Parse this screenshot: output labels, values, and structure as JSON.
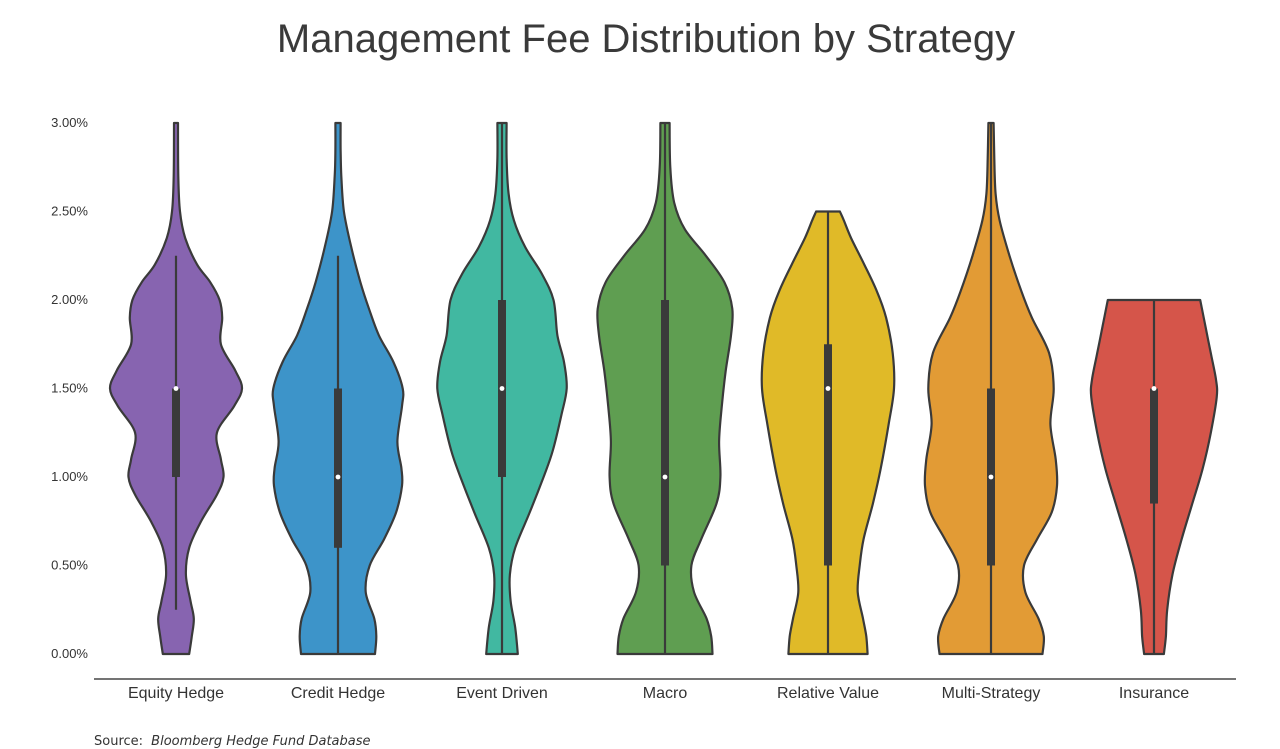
{
  "chart_data": {
    "type": "violin",
    "title": "Management Fee Distribution by Strategy",
    "xlabel": "",
    "ylabel": "",
    "ylim": [
      0,
      3
    ],
    "y_ticks": [
      0,
      0.5,
      1,
      1.5,
      2,
      2.5,
      3
    ],
    "y_tick_labels": [
      "0.00%",
      "0.50%",
      "1.00%",
      "1.50%",
      "2.00%",
      "2.50%",
      "3.00%"
    ],
    "grid": false,
    "legend": "none",
    "categories": [
      "Equity Hedge",
      "Credit Hedge",
      "Event Driven",
      "Macro",
      "Relative Value",
      "Multi-Strategy",
      "Insurance"
    ],
    "series": [
      {
        "category": "Equity Hedge",
        "color": "#8764b0",
        "min": 0.0,
        "max": 3.0,
        "whisker_low": 0.25,
        "q1": 1.0,
        "median": 1.5,
        "q3": 1.5,
        "whisker_high": 2.25,
        "density": [
          [
            0.0,
            0.2
          ],
          [
            0.1,
            0.24
          ],
          [
            0.2,
            0.27
          ],
          [
            0.3,
            0.22
          ],
          [
            0.45,
            0.15
          ],
          [
            0.6,
            0.2
          ],
          [
            0.75,
            0.38
          ],
          [
            0.9,
            0.62
          ],
          [
            1.0,
            0.72
          ],
          [
            1.1,
            0.68
          ],
          [
            1.25,
            0.62
          ],
          [
            1.4,
            0.88
          ],
          [
            1.5,
            1.0
          ],
          [
            1.6,
            0.9
          ],
          [
            1.75,
            0.68
          ],
          [
            1.9,
            0.7
          ],
          [
            2.0,
            0.66
          ],
          [
            2.1,
            0.52
          ],
          [
            2.2,
            0.32
          ],
          [
            2.35,
            0.14
          ],
          [
            2.5,
            0.06
          ],
          [
            2.7,
            0.035
          ],
          [
            3.0,
            0.03
          ]
        ]
      },
      {
        "category": "Credit Hedge",
        "color": "#3d94c9",
        "min": 0.0,
        "max": 3.0,
        "whisker_low": 0.0,
        "q1": 0.6,
        "median": 1.0,
        "q3": 1.5,
        "whisker_high": 2.25,
        "density": [
          [
            0.0,
            0.56
          ],
          [
            0.1,
            0.58
          ],
          [
            0.2,
            0.55
          ],
          [
            0.35,
            0.42
          ],
          [
            0.5,
            0.48
          ],
          [
            0.65,
            0.7
          ],
          [
            0.8,
            0.88
          ],
          [
            0.95,
            0.97
          ],
          [
            1.05,
            0.96
          ],
          [
            1.2,
            0.9
          ],
          [
            1.4,
            0.97
          ],
          [
            1.5,
            0.98
          ],
          [
            1.65,
            0.84
          ],
          [
            1.8,
            0.62
          ],
          [
            1.95,
            0.47
          ],
          [
            2.1,
            0.34
          ],
          [
            2.3,
            0.2
          ],
          [
            2.5,
            0.09
          ],
          [
            2.7,
            0.05
          ],
          [
            2.85,
            0.04
          ],
          [
            3.0,
            0.04
          ]
        ]
      },
      {
        "category": "Event Driven",
        "color": "#41b8a1",
        "min": 0.0,
        "max": 3.0,
        "whisker_low": 0.0,
        "q1": 1.0,
        "median": 1.5,
        "q3": 2.0,
        "whisker_high": 3.0,
        "density": [
          [
            0.0,
            0.24
          ],
          [
            0.15,
            0.2
          ],
          [
            0.3,
            0.13
          ],
          [
            0.45,
            0.12
          ],
          [
            0.6,
            0.2
          ],
          [
            0.8,
            0.42
          ],
          [
            1.0,
            0.63
          ],
          [
            1.15,
            0.77
          ],
          [
            1.35,
            0.9
          ],
          [
            1.5,
            0.98
          ],
          [
            1.65,
            0.94
          ],
          [
            1.8,
            0.84
          ],
          [
            2.0,
            0.78
          ],
          [
            2.15,
            0.6
          ],
          [
            2.3,
            0.35
          ],
          [
            2.45,
            0.18
          ],
          [
            2.6,
            0.1
          ],
          [
            2.8,
            0.07
          ],
          [
            3.0,
            0.07
          ]
        ]
      },
      {
        "category": "Macro",
        "color": "#5f9e51",
        "min": 0.0,
        "max": 3.0,
        "whisker_low": 0.0,
        "q1": 0.5,
        "median": 1.0,
        "q3": 2.0,
        "whisker_high": 3.0,
        "density": [
          [
            0.0,
            0.72
          ],
          [
            0.1,
            0.7
          ],
          [
            0.2,
            0.63
          ],
          [
            0.35,
            0.44
          ],
          [
            0.5,
            0.4
          ],
          [
            0.65,
            0.55
          ],
          [
            0.85,
            0.78
          ],
          [
            1.0,
            0.84
          ],
          [
            1.2,
            0.82
          ],
          [
            1.4,
            0.86
          ],
          [
            1.6,
            0.92
          ],
          [
            1.8,
            1.0
          ],
          [
            1.95,
            1.02
          ],
          [
            2.1,
            0.9
          ],
          [
            2.25,
            0.62
          ],
          [
            2.4,
            0.3
          ],
          [
            2.55,
            0.14
          ],
          [
            2.75,
            0.08
          ],
          [
            3.0,
            0.07
          ]
        ]
      },
      {
        "category": "Relative Value",
        "color": "#e0ba28",
        "min": 0.0,
        "max": 2.5,
        "whisker_low": 0.0,
        "q1": 0.5,
        "median": 1.5,
        "q3": 1.75,
        "whisker_high": 2.5,
        "density": [
          [
            0.0,
            0.6
          ],
          [
            0.1,
            0.58
          ],
          [
            0.2,
            0.53
          ],
          [
            0.35,
            0.45
          ],
          [
            0.5,
            0.48
          ],
          [
            0.65,
            0.54
          ],
          [
            0.85,
            0.68
          ],
          [
            1.05,
            0.8
          ],
          [
            1.3,
            0.92
          ],
          [
            1.5,
            1.0
          ],
          [
            1.7,
            0.98
          ],
          [
            1.9,
            0.88
          ],
          [
            2.05,
            0.74
          ],
          [
            2.2,
            0.55
          ],
          [
            2.35,
            0.35
          ],
          [
            2.45,
            0.24
          ],
          [
            2.5,
            0.18
          ]
        ]
      },
      {
        "category": "Multi-Strategy",
        "color": "#e29b35",
        "min": 0.0,
        "max": 3.0,
        "whisker_low": 0.0,
        "q1": 0.5,
        "median": 1.0,
        "q3": 1.5,
        "whisker_high": 3.0,
        "density": [
          [
            0.0,
            0.78
          ],
          [
            0.1,
            0.8
          ],
          [
            0.2,
            0.72
          ],
          [
            0.35,
            0.52
          ],
          [
            0.5,
            0.5
          ],
          [
            0.65,
            0.7
          ],
          [
            0.8,
            0.92
          ],
          [
            0.95,
            1.0
          ],
          [
            1.1,
            0.98
          ],
          [
            1.3,
            0.9
          ],
          [
            1.5,
            0.95
          ],
          [
            1.7,
            0.88
          ],
          [
            1.9,
            0.62
          ],
          [
            2.05,
            0.46
          ],
          [
            2.25,
            0.28
          ],
          [
            2.45,
            0.13
          ],
          [
            2.6,
            0.07
          ],
          [
            2.8,
            0.05
          ],
          [
            3.0,
            0.04
          ]
        ]
      },
      {
        "category": "Insurance",
        "color": "#d5554a",
        "min": 0.0,
        "max": 2.0,
        "whisker_low": 0.0,
        "q1": 0.85,
        "median": 1.5,
        "q3": 1.5,
        "whisker_high": 2.0,
        "density": [
          [
            0.0,
            0.15
          ],
          [
            0.1,
            0.18
          ],
          [
            0.25,
            0.2
          ],
          [
            0.45,
            0.28
          ],
          [
            0.65,
            0.42
          ],
          [
            0.85,
            0.58
          ],
          [
            1.05,
            0.74
          ],
          [
            1.25,
            0.86
          ],
          [
            1.45,
            0.95
          ],
          [
            1.55,
            0.94
          ],
          [
            1.7,
            0.86
          ],
          [
            1.85,
            0.78
          ],
          [
            2.0,
            0.7
          ]
        ]
      }
    ]
  },
  "source": {
    "prefix": "Source:",
    "name": "Bloomberg Hedge Fund Database"
  }
}
